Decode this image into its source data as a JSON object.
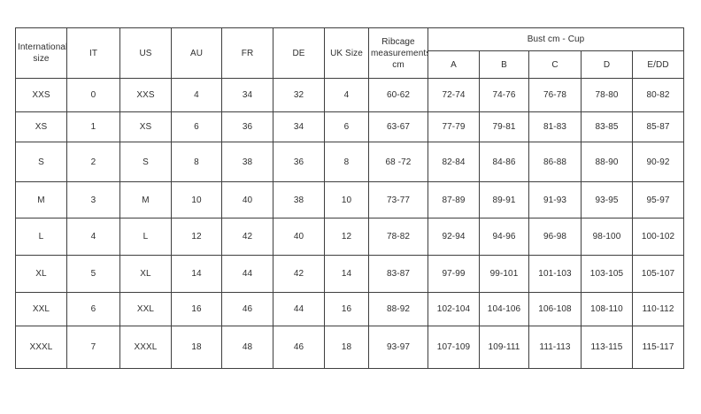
{
  "chart_data": {
    "type": "table",
    "title": "Size conversion and bust measurement table",
    "headers": {
      "international_size": "International size",
      "it": "IT",
      "us": "US",
      "au": "AU",
      "fr": "FR",
      "de": "DE",
      "uk_size": "UK Size",
      "ribcage": "Ribcage measurements cm",
      "bust_group": "Bust cm - Cup",
      "cups": [
        "A",
        "B",
        "C",
        "D",
        "E/DD"
      ]
    },
    "rows": [
      [
        "XXS",
        "0",
        "XXS",
        "4",
        "34",
        "32",
        "4",
        "60-62",
        "72-74",
        "74-76",
        "76-78",
        "78-80",
        "80-82"
      ],
      [
        "XS",
        "1",
        "XS",
        "6",
        "36",
        "34",
        "6",
        "63-67",
        "77-79",
        "79-81",
        "81-83",
        "83-85",
        "85-87"
      ],
      [
        "S",
        "2",
        "S",
        "8",
        "38",
        "36",
        "8",
        "68 -72",
        "82-84",
        "84-86",
        "86-88",
        "88-90",
        "90-92"
      ],
      [
        "M",
        "3",
        "M",
        "10",
        "40",
        "38",
        "10",
        "73-77",
        "87-89",
        "89-91",
        "91-93",
        "93-95",
        "95-97"
      ],
      [
        "L",
        "4",
        "L",
        "12",
        "42",
        "40",
        "12",
        "78-82",
        "92-94",
        "94-96",
        "96-98",
        "98-100",
        "100-102"
      ],
      [
        "XL",
        "5",
        "XL",
        "14",
        "44",
        "42",
        "14",
        "83-87",
        "97-99",
        "99-101",
        "101-103",
        "103-105",
        "105-107"
      ],
      [
        "XXL",
        "6",
        "XXL",
        "16",
        "46",
        "44",
        "16",
        "88-92",
        "102-104",
        "104-106",
        "106-108",
        "108-110",
        "110-112"
      ],
      [
        "XXXL",
        "7",
        "XXXL",
        "18",
        "48",
        "46",
        "18",
        "93-97",
        "107-109",
        "109-111",
        "111-113",
        "113-115",
        "115-117"
      ]
    ],
    "colors": {
      "border": "#3f3f3f",
      "text": "#2e2e2e",
      "background": "#ffffff"
    },
    "layout_hints": {
      "grid": true,
      "group_header_span": 5,
      "rowspan_header_columns": 8
    }
  }
}
